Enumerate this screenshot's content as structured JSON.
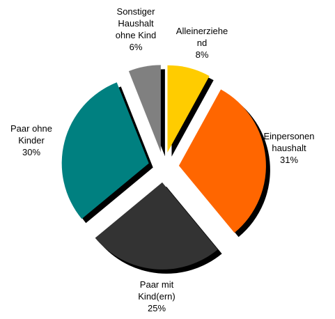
{
  "chart_data": {
    "type": "pie",
    "categories": [
      "Alleinerziehe\nnd",
      "Einpersonen\nhaushalt",
      "Paar mit\nKind(ern)",
      "Paar ohne\nKinder",
      "Sonstiger\nHaushalt\nohne Kind"
    ],
    "values": [
      8,
      31,
      25,
      30,
      6
    ],
    "value_labels": [
      "8%",
      "31%",
      "25%",
      "30%",
      "6%"
    ],
    "colors": [
      "#ffcc00",
      "#ff6600",
      "#333333",
      "#008080",
      "#808080"
    ]
  }
}
